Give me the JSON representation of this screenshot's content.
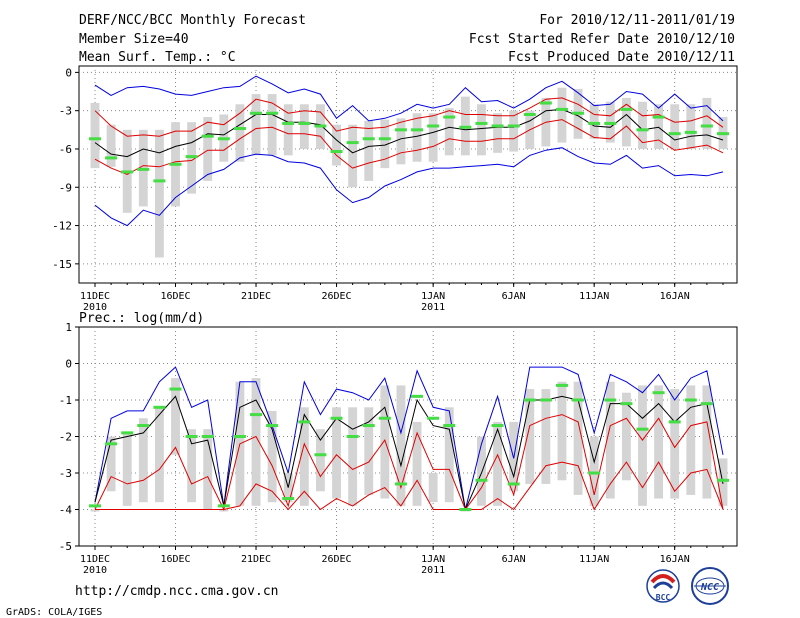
{
  "header": {
    "title": "DERF/NCC/BCC Monthly Forecast",
    "member_size": "Member Size=40",
    "variable": "Mean Surf. Temp.: °C",
    "forecast_period": "For 2010/12/11-2011/01/19",
    "start_date": "Fcst Started Refer Date 2010/12/10",
    "produced_date": "Fcst Produced Date 2010/12/11"
  },
  "footer": {
    "url": "http://cmdp.ncc.cma.gov.cn",
    "credit": "GrADS: COLA/IGES",
    "logo_bcc": "BCC",
    "logo_ncc": "NCC"
  },
  "colors": {
    "box": "#d4d4d4",
    "mean": "#000000",
    "spread": "#e00000",
    "envelope": "#0000e0",
    "median": "#44dd44",
    "grid": "#888888"
  },
  "chart_data": [
    {
      "type": "box-ensemble",
      "title": "Mean Surf. Temp.: °C",
      "days": 40,
      "xlabel": "",
      "ylabel": "°C",
      "ylim": [
        -16.5,
        0.5
      ],
      "yticks": [
        0,
        -3,
        -6,
        -9,
        -12,
        -15
      ],
      "ytick_labels": [
        "0",
        "-3",
        "-6",
        "-9",
        "-12",
        "-15"
      ],
      "xticks": [
        {
          "day": 0,
          "label": "11DEC",
          "sub": "2010"
        },
        {
          "day": 5,
          "label": "16DEC",
          "sub": ""
        },
        {
          "day": 10,
          "label": "21DEC",
          "sub": ""
        },
        {
          "day": 15,
          "label": "26DEC",
          "sub": ""
        },
        {
          "day": 21,
          "label": "1JAN",
          "sub": "2011"
        },
        {
          "day": 26,
          "label": "6JAN",
          "sub": ""
        },
        {
          "day": 31,
          "label": "11JAN",
          "sub": ""
        },
        {
          "day": 36,
          "label": "16JAN",
          "sub": ""
        }
      ],
      "box_low": [
        -7.5,
        -7.4,
        -11,
        -10.5,
        -14.5,
        -10.5,
        -9.5,
        -8.5,
        -7,
        -7,
        -6.5,
        -6.5,
        -6.5,
        -6,
        -6,
        -7.3,
        -9,
        -8.5,
        -7.5,
        -7.2,
        -7,
        -7,
        -6.5,
        -6.5,
        -6.5,
        -6.3,
        -6.2,
        -6,
        -5.8,
        -5.5,
        -5.2,
        -5.2,
        -5.5,
        -5.8,
        -6,
        -6,
        -6,
        -6,
        -6,
        -6
      ],
      "box_high": [
        -2.4,
        -4.1,
        -4.5,
        -4.5,
        -4.5,
        -3.9,
        -3.9,
        -3.5,
        -3.3,
        -2.5,
        -1.7,
        -1.7,
        -2.5,
        -2.5,
        -2.5,
        -4.1,
        -4.1,
        -3.8,
        -3.7,
        -3.6,
        -3.2,
        -3.2,
        -2.8,
        -1.9,
        -2.5,
        -3.2,
        -3,
        -3,
        -2,
        -1.2,
        -1.3,
        -2.5,
        -2.3,
        -2,
        -2.3,
        -2.5,
        -2.5,
        -2.5,
        -2,
        -3.5
      ],
      "median": [
        -5.2,
        -6.7,
        -7.8,
        -7.6,
        -8.5,
        -7.2,
        -6.6,
        -5,
        -5.2,
        -4.4,
        -3.2,
        -3.2,
        -4,
        -4,
        -4.2,
        -6.2,
        -5.5,
        -5.2,
        -5.2,
        -4.5,
        -4.5,
        -4.2,
        -3.5,
        -4.3,
        -4,
        -4.2,
        -4.2,
        -3.3,
        -2.4,
        -2.9,
        -3.2,
        -4,
        -4,
        -2.9,
        -4.5,
        -3.5,
        -4.8,
        -4.7,
        -4.2,
        -4.8
      ],
      "series": [
        {
          "name": "max",
          "color": "#0000e0",
          "values": [
            -1.0,
            -1.8,
            -1.2,
            -1.1,
            -1.3,
            -1.7,
            -1.8,
            -1.5,
            -1.2,
            -1.1,
            -0.3,
            -0.9,
            -1.6,
            -1.3,
            -1.7,
            -3.6,
            -2.6,
            -3.8,
            -3.6,
            -3.2,
            -2.5,
            -2.8,
            -2.5,
            -1.2,
            -2.3,
            -2.2,
            -2.8,
            -2.1,
            -1.2,
            -0.7,
            -1.6,
            -2.6,
            -2.5,
            -1.5,
            -1.7,
            -2.8,
            -1.7,
            -2.8,
            -2.6,
            -3.8
          ]
        },
        {
          "name": "upper",
          "color": "#e00000",
          "values": [
            -3.0,
            -4.2,
            -5.0,
            -4.9,
            -5.0,
            -4.6,
            -4.6,
            -3.9,
            -4.1,
            -3.2,
            -2.1,
            -2.4,
            -3.2,
            -3.0,
            -3.1,
            -4.6,
            -4.3,
            -4.4,
            -4.3,
            -3.9,
            -3.6,
            -3.4,
            -3.0,
            -3.3,
            -3.3,
            -3.4,
            -3.4,
            -2.8,
            -2.1,
            -2.0,
            -2.5,
            -3.3,
            -3.4,
            -2.5,
            -3.4,
            -3.3,
            -3.9,
            -3.8,
            -3.4,
            -4.3
          ]
        },
        {
          "name": "mean",
          "color": "#000000",
          "values": [
            -5.5,
            -6.4,
            -6.6,
            -6.0,
            -6.3,
            -5.8,
            -5.5,
            -4.8,
            -4.9,
            -4.1,
            -3.3,
            -3.3,
            -3.9,
            -3.9,
            -4.1,
            -5.3,
            -6.3,
            -5.8,
            -5.7,
            -5.2,
            -5.0,
            -4.7,
            -4.3,
            -4.5,
            -4.4,
            -4.3,
            -4.3,
            -3.8,
            -3.0,
            -2.9,
            -3.4,
            -4.2,
            -4.3,
            -3.3,
            -4.5,
            -4.3,
            -5.3,
            -5.0,
            -4.9,
            -5.3
          ]
        },
        {
          "name": "lower",
          "color": "#e00000",
          "values": [
            -6.8,
            -7.5,
            -8.0,
            -7.3,
            -7.4,
            -7.0,
            -6.9,
            -6.1,
            -6.1,
            -5.2,
            -4.4,
            -4.3,
            -4.8,
            -4.8,
            -5.0,
            -6.5,
            -7.5,
            -7.1,
            -6.8,
            -6.3,
            -6.1,
            -5.8,
            -5.2,
            -5.4,
            -5.4,
            -5.2,
            -5.2,
            -4.5,
            -3.9,
            -3.7,
            -4.4,
            -5.1,
            -5.2,
            -4.2,
            -5.5,
            -5.3,
            -6.1,
            -5.9,
            -5.7,
            -6.3
          ]
        },
        {
          "name": "min",
          "color": "#0000e0",
          "values": [
            -10.4,
            -11.4,
            -12.0,
            -10.8,
            -11.2,
            -9.8,
            -8.9,
            -8.0,
            -7.6,
            -6.7,
            -6.4,
            -6.5,
            -7.0,
            -7.1,
            -7.5,
            -9.2,
            -10.2,
            -9.8,
            -8.9,
            -8.4,
            -7.8,
            -7.5,
            -7.5,
            -7.4,
            -7.3,
            -7.2,
            -7.4,
            -6.5,
            -6.1,
            -5.9,
            -6.6,
            -7.1,
            -7.2,
            -6.5,
            -7.5,
            -7.3,
            -8.1,
            -8.0,
            -8.1,
            -7.8
          ]
        }
      ]
    },
    {
      "type": "box-ensemble",
      "title": "Prec.: log(mm/d)",
      "days": 40,
      "xlabel": "",
      "ylabel": "log(mm/d)",
      "ylim": [
        -5,
        1
      ],
      "yticks": [
        1,
        0,
        -1,
        -2,
        -3,
        -4,
        -5
      ],
      "ytick_labels": [
        "1",
        "0",
        "-1",
        "-2",
        "-3",
        "-4",
        "-5"
      ],
      "xticks": [
        {
          "day": 0,
          "label": "11DEC",
          "sub": "2010"
        },
        {
          "day": 5,
          "label": "16DEC",
          "sub": ""
        },
        {
          "day": 10,
          "label": "21DEC",
          "sub": ""
        },
        {
          "day": 15,
          "label": "26DEC",
          "sub": ""
        },
        {
          "day": 21,
          "label": "1JAN",
          "sub": "2011"
        },
        {
          "day": 26,
          "label": "6JAN",
          "sub": ""
        },
        {
          "day": 31,
          "label": "11JAN",
          "sub": ""
        },
        {
          "day": 36,
          "label": "16JAN",
          "sub": ""
        }
      ],
      "box_low": [
        -4,
        -3.5,
        -3.9,
        -3.8,
        -3.8,
        -2.5,
        -3.8,
        -4,
        -4,
        -3.9,
        -3.9,
        -3.8,
        -3.8,
        -3.9,
        -3.5,
        -3.7,
        -3.9,
        -3.6,
        -3.7,
        -3.9,
        -3.9,
        -3.8,
        -3.8,
        -4,
        -3.9,
        -3.9,
        -3.5,
        -3.3,
        -3.3,
        -3.2,
        -3.6,
        -3.9,
        -3.7,
        -3.2,
        -3.9,
        -3.7,
        -3.7,
        -3.6,
        -3.7,
        -3.9
      ],
      "box_high": [
        -4,
        -2,
        -1.9,
        -1.5,
        -1.2,
        -0.4,
        -1.8,
        -1.8,
        -4,
        -0.5,
        -0.4,
        -1.3,
        -3,
        -1.2,
        -1.8,
        -1.2,
        -1.2,
        -1.2,
        -0.6,
        -0.6,
        -1.6,
        -3,
        -1.2,
        -4,
        -2,
        -1.6,
        -1.6,
        -0.7,
        -0.7,
        -0.5,
        -0.5,
        -2,
        -0.5,
        -0.8,
        -0.6,
        -0.6,
        -0.7,
        -0.6,
        -0.6,
        -2.6
      ],
      "median": [
        -3.9,
        -2.2,
        -1.9,
        -1.7,
        -1.2,
        -0.7,
        -2.0,
        -2.0,
        -3.9,
        -2.0,
        -1.4,
        -1.7,
        -3.7,
        -1.6,
        -2.5,
        -1.5,
        -2.0,
        -1.7,
        -1.5,
        -3.3,
        -0.9,
        -1.5,
        -1.7,
        -4.0,
        -3.2,
        -1.7,
        -3.3,
        -1.0,
        -1.0,
        -0.6,
        -1.0,
        -3.0,
        -1.0,
        -1.1,
        -1.8,
        -0.8,
        -1.6,
        -1.0,
        -1.1,
        -3.2
      ],
      "series": [
        {
          "name": "max",
          "color": "#0000e0",
          "values": [
            -3.8,
            -1.5,
            -1.3,
            -1.3,
            -0.5,
            -0.1,
            -1.2,
            -1.0,
            -3.9,
            -0.5,
            -0.5,
            -1.7,
            -3.0,
            -0.5,
            -1.4,
            -0.7,
            -0.8,
            -1.0,
            -0.4,
            -1.9,
            -0.2,
            -1.2,
            -1.3,
            -4.0,
            -2.2,
            -0.9,
            -2.6,
            -0.1,
            -0.1,
            -0.1,
            -0.3,
            -1.9,
            -0.3,
            -0.5,
            -0.8,
            -0.3,
            -1.0,
            -0.4,
            -0.2,
            -2.5
          ]
        },
        {
          "name": "mean",
          "color": "#000000",
          "values": [
            -3.8,
            -2.1,
            -2.0,
            -1.9,
            -1.4,
            -0.9,
            -2.2,
            -2.1,
            -3.9,
            -1.2,
            -1.0,
            -1.8,
            -3.4,
            -1.4,
            -2.1,
            -1.5,
            -1.8,
            -1.6,
            -1.2,
            -2.8,
            -1.0,
            -1.7,
            -1.8,
            -4.0,
            -3.0,
            -1.8,
            -3.1,
            -1.0,
            -1.0,
            -0.9,
            -1.0,
            -2.7,
            -1.1,
            -1.1,
            -1.5,
            -1.1,
            -1.6,
            -1.2,
            -1.1,
            -3.3
          ]
        },
        {
          "name": "upper",
          "color": "#e00000",
          "values": [
            -4.0,
            -3.1,
            -3.3,
            -3.2,
            -2.9,
            -2.3,
            -3.3,
            -3.1,
            -4.0,
            -2.2,
            -2.0,
            -2.8,
            -3.9,
            -2.2,
            -3.1,
            -2.5,
            -2.9,
            -2.7,
            -2.1,
            -3.4,
            -1.9,
            -2.9,
            -2.9,
            -4.0,
            -3.4,
            -2.5,
            -3.6,
            -1.7,
            -1.5,
            -1.4,
            -1.6,
            -3.6,
            -1.7,
            -1.5,
            -2.1,
            -1.5,
            -2.3,
            -1.7,
            -1.6,
            -4.0
          ]
        },
        {
          "name": "lower",
          "color": "#e00000",
          "values": [
            -4.0,
            -4.0,
            -4.0,
            -4.0,
            -4.0,
            -4.0,
            -4.0,
            -4.0,
            -4.0,
            -3.9,
            -3.3,
            -3.5,
            -4.0,
            -3.5,
            -4.0,
            -3.7,
            -3.9,
            -3.6,
            -3.4,
            -3.9,
            -3.2,
            -4.0,
            -4.0,
            -4.0,
            -4.0,
            -3.7,
            -4.0,
            -3.4,
            -2.8,
            -2.7,
            -2.8,
            -4.0,
            -3.3,
            -2.7,
            -3.4,
            -2.7,
            -3.5,
            -3.0,
            -2.9,
            -4.0
          ]
        }
      ]
    }
  ]
}
